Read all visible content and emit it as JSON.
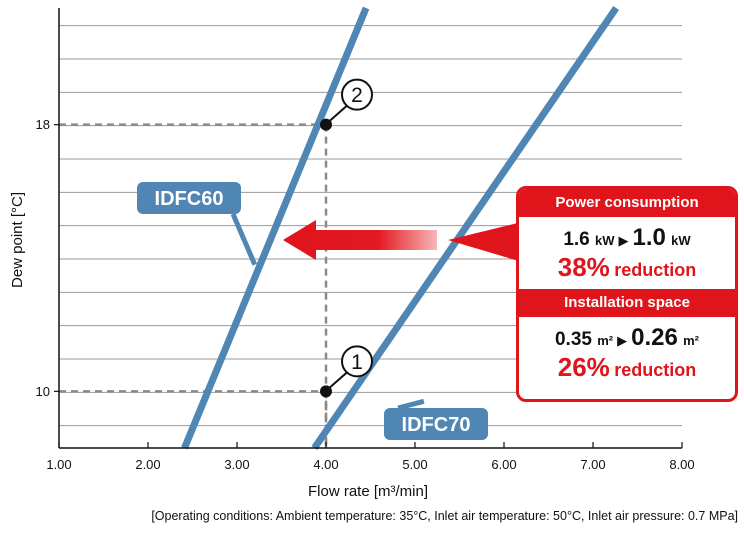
{
  "chart_data": {
    "type": "line",
    "xlabel": "Flow rate [m³/min]",
    "ylabel": "Dew point [°C]",
    "xlim": [
      1.0,
      8.0
    ],
    "ylim": [
      8.3,
      21.5
    ],
    "x_ticks": [
      "1.00",
      "2.00",
      "3.00",
      "4.00",
      "5.00",
      "6.00",
      "7.00",
      "8.00"
    ],
    "y_ticks": [
      {
        "value": 10,
        "label": "10"
      },
      {
        "value": 18,
        "label": "18"
      }
    ],
    "y_gridlines": [
      8.97,
      9.97,
      10.97,
      11.97,
      12.97,
      13.97,
      14.97,
      15.97,
      16.97,
      17.97,
      18.97,
      19.97,
      20.97
    ],
    "grid": true,
    "series": [
      {
        "name": "IDFC60",
        "x": [
          2.41,
          4.45
        ],
        "y": [
          8.3,
          21.5
        ],
        "color": "#4f86b3"
      },
      {
        "name": "IDFC70",
        "x": [
          3.87,
          7.26
        ],
        "y": [
          8.3,
          21.5
        ],
        "color": "#4f86b3"
      }
    ],
    "points": [
      {
        "label": "①",
        "x": 4.0,
        "y": 10.0
      },
      {
        "label": "②",
        "x": 4.0,
        "y": 18.0
      }
    ],
    "series_labels": [
      {
        "text": "IDFC60",
        "at_x": 3.2,
        "at_y": 13.8
      },
      {
        "text": "IDFC70",
        "at_x": 5.1,
        "at_y": 9.7
      }
    ]
  },
  "footnote": "[Operating conditions: Ambient temperature: 35°C, Inlet air temperature: 50°C, Inlet air pressure: 0.7 MPa]",
  "callout": {
    "power": {
      "title": "Power consumption",
      "from_value": "1.6",
      "from_unit": "kW",
      "arrow": "▶",
      "to_value": "1.0",
      "to_unit": "kW",
      "percent": "38%",
      "reduction": "reduction"
    },
    "space": {
      "title": "Installation space",
      "from_value": "0.35",
      "from_unit": "m²",
      "arrow": "▶",
      "to_value": "0.26",
      "to_unit": "m²",
      "percent": "26%",
      "reduction": "reduction"
    }
  },
  "colors": {
    "line": "#4f86b3",
    "accent": "#e0141b",
    "grid": "#9a9a9a",
    "guide": "#8a8a8a"
  }
}
